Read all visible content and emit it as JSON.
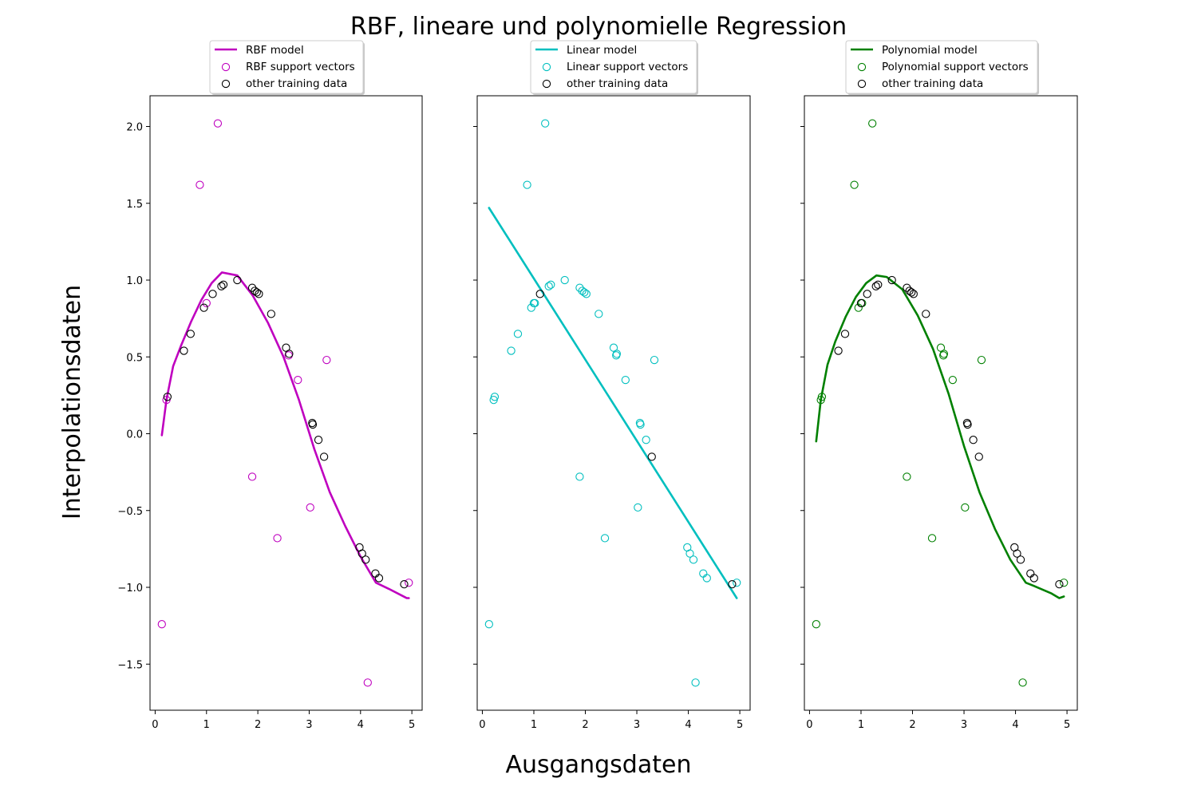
{
  "title": "RBF, lineare und polynomielle Regression",
  "xlabel": "Ausgangsdaten",
  "ylabel": "Interpolationsdaten",
  "chart_data": [
    {
      "type": "scatter",
      "panel": "rbf",
      "xlim": [
        -0.1,
        5.2
      ],
      "ylim": [
        -1.8,
        2.2
      ],
      "x_ticks": [
        0,
        1,
        2,
        3,
        4,
        5
      ],
      "y_ticks": [
        -1.5,
        -1.0,
        -0.5,
        0.0,
        0.5,
        1.0,
        1.5,
        2.0
      ],
      "y_tick_labels": [
        "−1.5",
        "−1.0",
        "−0.5",
        "0.0",
        "0.5",
        "1.0",
        "1.5",
        "2.0"
      ],
      "legend_location": "above plot",
      "series": [
        {
          "name": "RBF model",
          "kind": "line",
          "color": "#bf00bf",
          "x": [
            0.13,
            0.22,
            0.35,
            0.5,
            0.7,
            0.9,
            1.1,
            1.3,
            1.6,
            1.9,
            2.2,
            2.5,
            2.8,
            3.1,
            3.4,
            3.7,
            4.0,
            4.3,
            4.55,
            4.9,
            4.94
          ],
          "y": [
            -0.01,
            0.22,
            0.44,
            0.57,
            0.73,
            0.87,
            0.98,
            1.05,
            1.03,
            0.9,
            0.72,
            0.5,
            0.22,
            -0.1,
            -0.38,
            -0.6,
            -0.8,
            -0.97,
            -1.01,
            -1.07,
            -1.07
          ]
        },
        {
          "name": "RBF support vectors",
          "kind": "scatter",
          "color": "#bf00bf",
          "x": [
            0.13,
            0.22,
            0.87,
            1.0,
            1.22,
            1.89,
            2.38,
            2.6,
            2.78,
            3.02,
            3.34,
            4.14,
            4.94
          ],
          "y": [
            -1.24,
            0.22,
            1.62,
            0.85,
            2.02,
            -0.28,
            -0.68,
            0.51,
            0.35,
            -0.48,
            0.48,
            -1.62,
            -0.97
          ]
        },
        {
          "name": "other training data",
          "kind": "scatter",
          "color": "#000000",
          "x": [
            0.24,
            0.56,
            0.69,
            0.95,
            1.12,
            1.29,
            1.33,
            1.6,
            1.89,
            1.94,
            1.98,
            2.02,
            2.26,
            2.55,
            2.61,
            3.06,
            3.07,
            3.18,
            3.29,
            3.98,
            4.03,
            4.1,
            4.29,
            4.36,
            4.85
          ],
          "y": [
            0.24,
            0.54,
            0.65,
            0.82,
            0.91,
            0.96,
            0.97,
            1.0,
            0.95,
            0.93,
            0.92,
            0.91,
            0.78,
            0.56,
            0.52,
            0.07,
            0.06,
            -0.04,
            -0.15,
            -0.74,
            -0.78,
            -0.82,
            -0.91,
            -0.94,
            -0.98
          ]
        }
      ]
    },
    {
      "type": "scatter",
      "panel": "linear",
      "xlim": [
        -0.1,
        5.2
      ],
      "ylim": [
        -1.8,
        2.2
      ],
      "x_ticks": [
        0,
        1,
        2,
        3,
        4,
        5
      ],
      "legend_location": "above plot",
      "series": [
        {
          "name": "Linear model",
          "kind": "line",
          "color": "#00bfbf",
          "x": [
            0.13,
            4.94
          ],
          "y": [
            1.47,
            -1.07
          ]
        },
        {
          "name": "Linear support vectors",
          "kind": "scatter",
          "color": "#00bfbf",
          "x": [
            0.13,
            0.22,
            0.24,
            0.56,
            0.69,
            0.87,
            0.95,
            1.0,
            1.02,
            1.22,
            1.29,
            1.33,
            1.6,
            1.89,
            1.89,
            1.94,
            1.98,
            2.02,
            2.26,
            2.38,
            2.55,
            2.6,
            2.61,
            2.78,
            3.02,
            3.06,
            3.07,
            3.18,
            3.34,
            3.98,
            4.03,
            4.1,
            4.14,
            4.29,
            4.36,
            4.94
          ],
          "y": [
            -1.24,
            0.22,
            0.24,
            0.54,
            0.65,
            1.62,
            0.82,
            0.85,
            0.85,
            2.02,
            0.96,
            0.97,
            1.0,
            0.95,
            -0.28,
            0.93,
            0.92,
            0.91,
            0.78,
            -0.68,
            0.56,
            0.51,
            0.52,
            0.35,
            -0.48,
            0.07,
            0.06,
            -0.04,
            0.48,
            -0.74,
            -0.78,
            -0.82,
            -1.62,
            -0.91,
            -0.94,
            -0.97
          ]
        },
        {
          "name": "other training data",
          "kind": "scatter",
          "color": "#000000",
          "x": [
            1.12,
            3.29,
            4.85
          ],
          "y": [
            0.91,
            -0.15,
            -0.98
          ]
        }
      ]
    },
    {
      "type": "scatter",
      "panel": "polynomial",
      "xlim": [
        -0.1,
        5.2
      ],
      "ylim": [
        -1.8,
        2.2
      ],
      "x_ticks": [
        0,
        1,
        2,
        3,
        4,
        5
      ],
      "legend_location": "above plot",
      "series": [
        {
          "name": "Polynomial model",
          "kind": "line",
          "color": "#008000",
          "x": [
            0.13,
            0.22,
            0.35,
            0.5,
            0.7,
            0.9,
            1.1,
            1.3,
            1.5,
            1.8,
            2.1,
            2.4,
            2.7,
            3.0,
            3.3,
            3.6,
            3.9,
            4.2,
            4.35,
            4.7,
            4.85,
            4.94
          ],
          "y": [
            -0.05,
            0.22,
            0.45,
            0.6,
            0.76,
            0.89,
            0.98,
            1.03,
            1.02,
            0.94,
            0.77,
            0.55,
            0.26,
            -0.08,
            -0.38,
            -0.62,
            -0.82,
            -0.97,
            -0.99,
            -1.04,
            -1.07,
            -1.06
          ]
        },
        {
          "name": "Polynomial support vectors",
          "kind": "scatter",
          "color": "#008000",
          "x": [
            0.13,
            0.22,
            0.24,
            0.87,
            0.95,
            1.02,
            1.22,
            1.89,
            2.38,
            2.55,
            2.6,
            2.61,
            2.78,
            3.02,
            3.34,
            4.14,
            4.94
          ],
          "y": [
            -1.24,
            0.22,
            0.24,
            1.62,
            0.82,
            0.85,
            2.02,
            -0.28,
            -0.68,
            0.56,
            0.51,
            0.52,
            0.35,
            -0.48,
            0.48,
            -1.62,
            -0.97
          ]
        },
        {
          "name": "other training data",
          "kind": "scatter",
          "color": "#000000",
          "x": [
            0.56,
            0.69,
            1.0,
            1.12,
            1.29,
            1.33,
            1.6,
            1.89,
            1.94,
            1.98,
            2.02,
            2.26,
            3.06,
            3.07,
            3.18,
            3.29,
            3.98,
            4.03,
            4.1,
            4.29,
            4.36,
            4.85
          ],
          "y": [
            0.54,
            0.65,
            0.85,
            0.91,
            0.96,
            0.97,
            1.0,
            0.95,
            0.93,
            0.92,
            0.91,
            0.78,
            0.07,
            0.06,
            -0.04,
            -0.15,
            -0.74,
            -0.78,
            -0.82,
            -0.91,
            -0.94,
            -0.98
          ]
        }
      ]
    }
  ]
}
